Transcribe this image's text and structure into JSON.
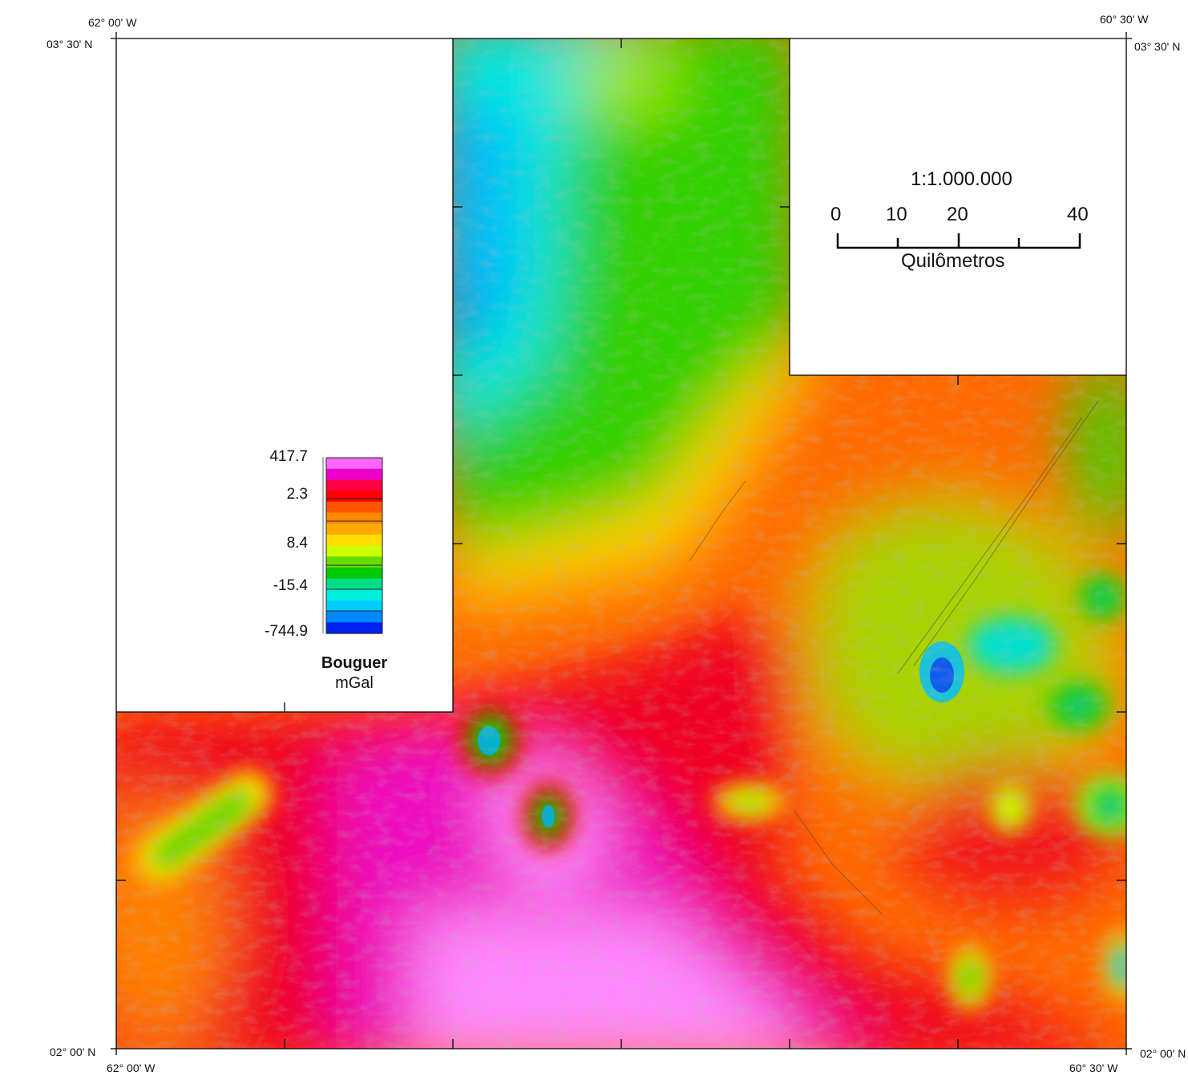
{
  "coordinates": {
    "top_left_lon": "62° 00' W",
    "top_left_lat": "03° 30'  N",
    "top_right_lon": "60° 30' W",
    "top_right_lat": "03° 30' N",
    "bottom_left_lat": "02° 00' N",
    "bottom_left_lon": "62° 00' W",
    "bottom_right_lat": "02° 00' N",
    "bottom_right_lon": "60° 30'  W"
  },
  "scale": {
    "ratio": "1:1.000.000",
    "ticks": [
      "0",
      "10",
      "20",
      "40"
    ],
    "unit": "Quilômetros"
  },
  "legend": {
    "values": [
      "417.7",
      "2.3",
      "8.4",
      "-15.4",
      "-744.9"
    ],
    "title": "Bouguer",
    "unit": "mGal",
    "colors": [
      "#ff66ff",
      "#ee00cc",
      "#ff0044",
      "#ff0000",
      "#ff5500",
      "#ff8800",
      "#ffaa00",
      "#ffdd00",
      "#ccff00",
      "#66dd00",
      "#00cc00",
      "#00dd88",
      "#00eedd",
      "#00ccff",
      "#0088ff",
      "#0022ee"
    ]
  }
}
